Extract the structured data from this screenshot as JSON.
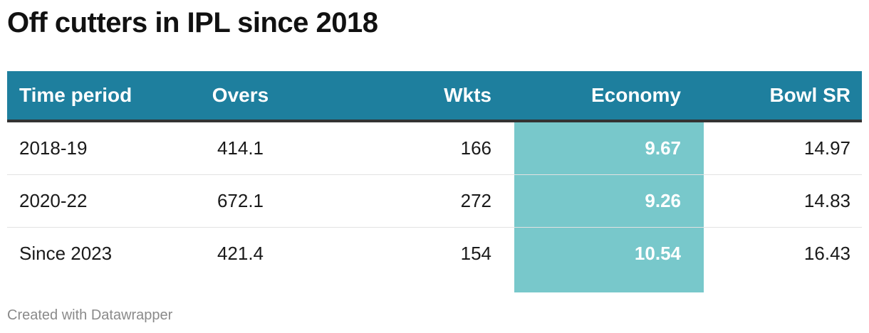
{
  "title": "Off cutters in IPL since 2018",
  "footer": "Created with Datawrapper",
  "colors": {
    "header_bg": "#1e7f9e",
    "highlight": "#78c8cb",
    "header_text": "#ffffff"
  },
  "chart_data": {
    "type": "table",
    "title": "Off cutters in IPL since 2018",
    "columns": [
      "Time period",
      "Overs",
      "Wkts",
      "Economy",
      "Bowl SR"
    ],
    "highlighted_column": "Economy",
    "rows": [
      [
        "2018-19",
        "414.1",
        "166",
        "9.67",
        "14.97"
      ],
      [
        "2020-22",
        "672.1",
        "272",
        "9.26",
        "14.83"
      ],
      [
        "Since 2023",
        "421.4",
        "154",
        "10.54",
        "16.43"
      ]
    ]
  }
}
